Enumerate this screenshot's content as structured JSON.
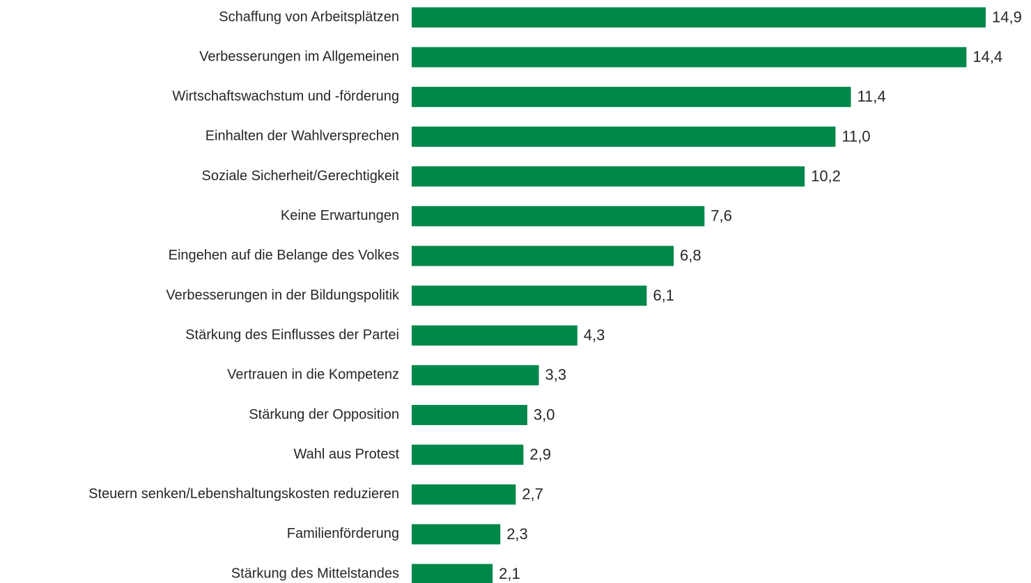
{
  "chart_data": {
    "type": "bar",
    "orientation": "horizontal",
    "color": "#00874a",
    "categories": [
      "Schaffung von Arbeitsplätzen",
      "Verbesserungen im Allgemeinen",
      "Wirtschaftswachstum und -förderung",
      "Einhalten der Wahlversprechen",
      "Soziale Sicherheit/Gerechtigkeit",
      "Keine Erwartungen",
      "Eingehen auf die Belange des Volkes",
      "Verbesserungen in der Bildungspolitik",
      "Stärkung des Einflusses der Partei",
      "Vertrauen in die Kompetenz",
      "Stärkung der Opposition",
      "Wahl aus Protest",
      "Steuern senken/Lebenshaltungskosten reduzieren",
      "Familienförderung",
      "Stärkung des Mittelstandes"
    ],
    "values": [
      14.9,
      14.4,
      11.4,
      11.0,
      10.2,
      7.6,
      6.8,
      6.1,
      4.3,
      3.3,
      3.0,
      2.9,
      2.7,
      2.3,
      2.1
    ],
    "value_labels": [
      "14,9",
      "14,4",
      "11,4",
      "11,0",
      "10,2",
      "7,6",
      "6,8",
      "6,1",
      "4,3",
      "3,3",
      "3,0",
      "2,9",
      "2,7",
      "2,3",
      "2,1"
    ]
  }
}
